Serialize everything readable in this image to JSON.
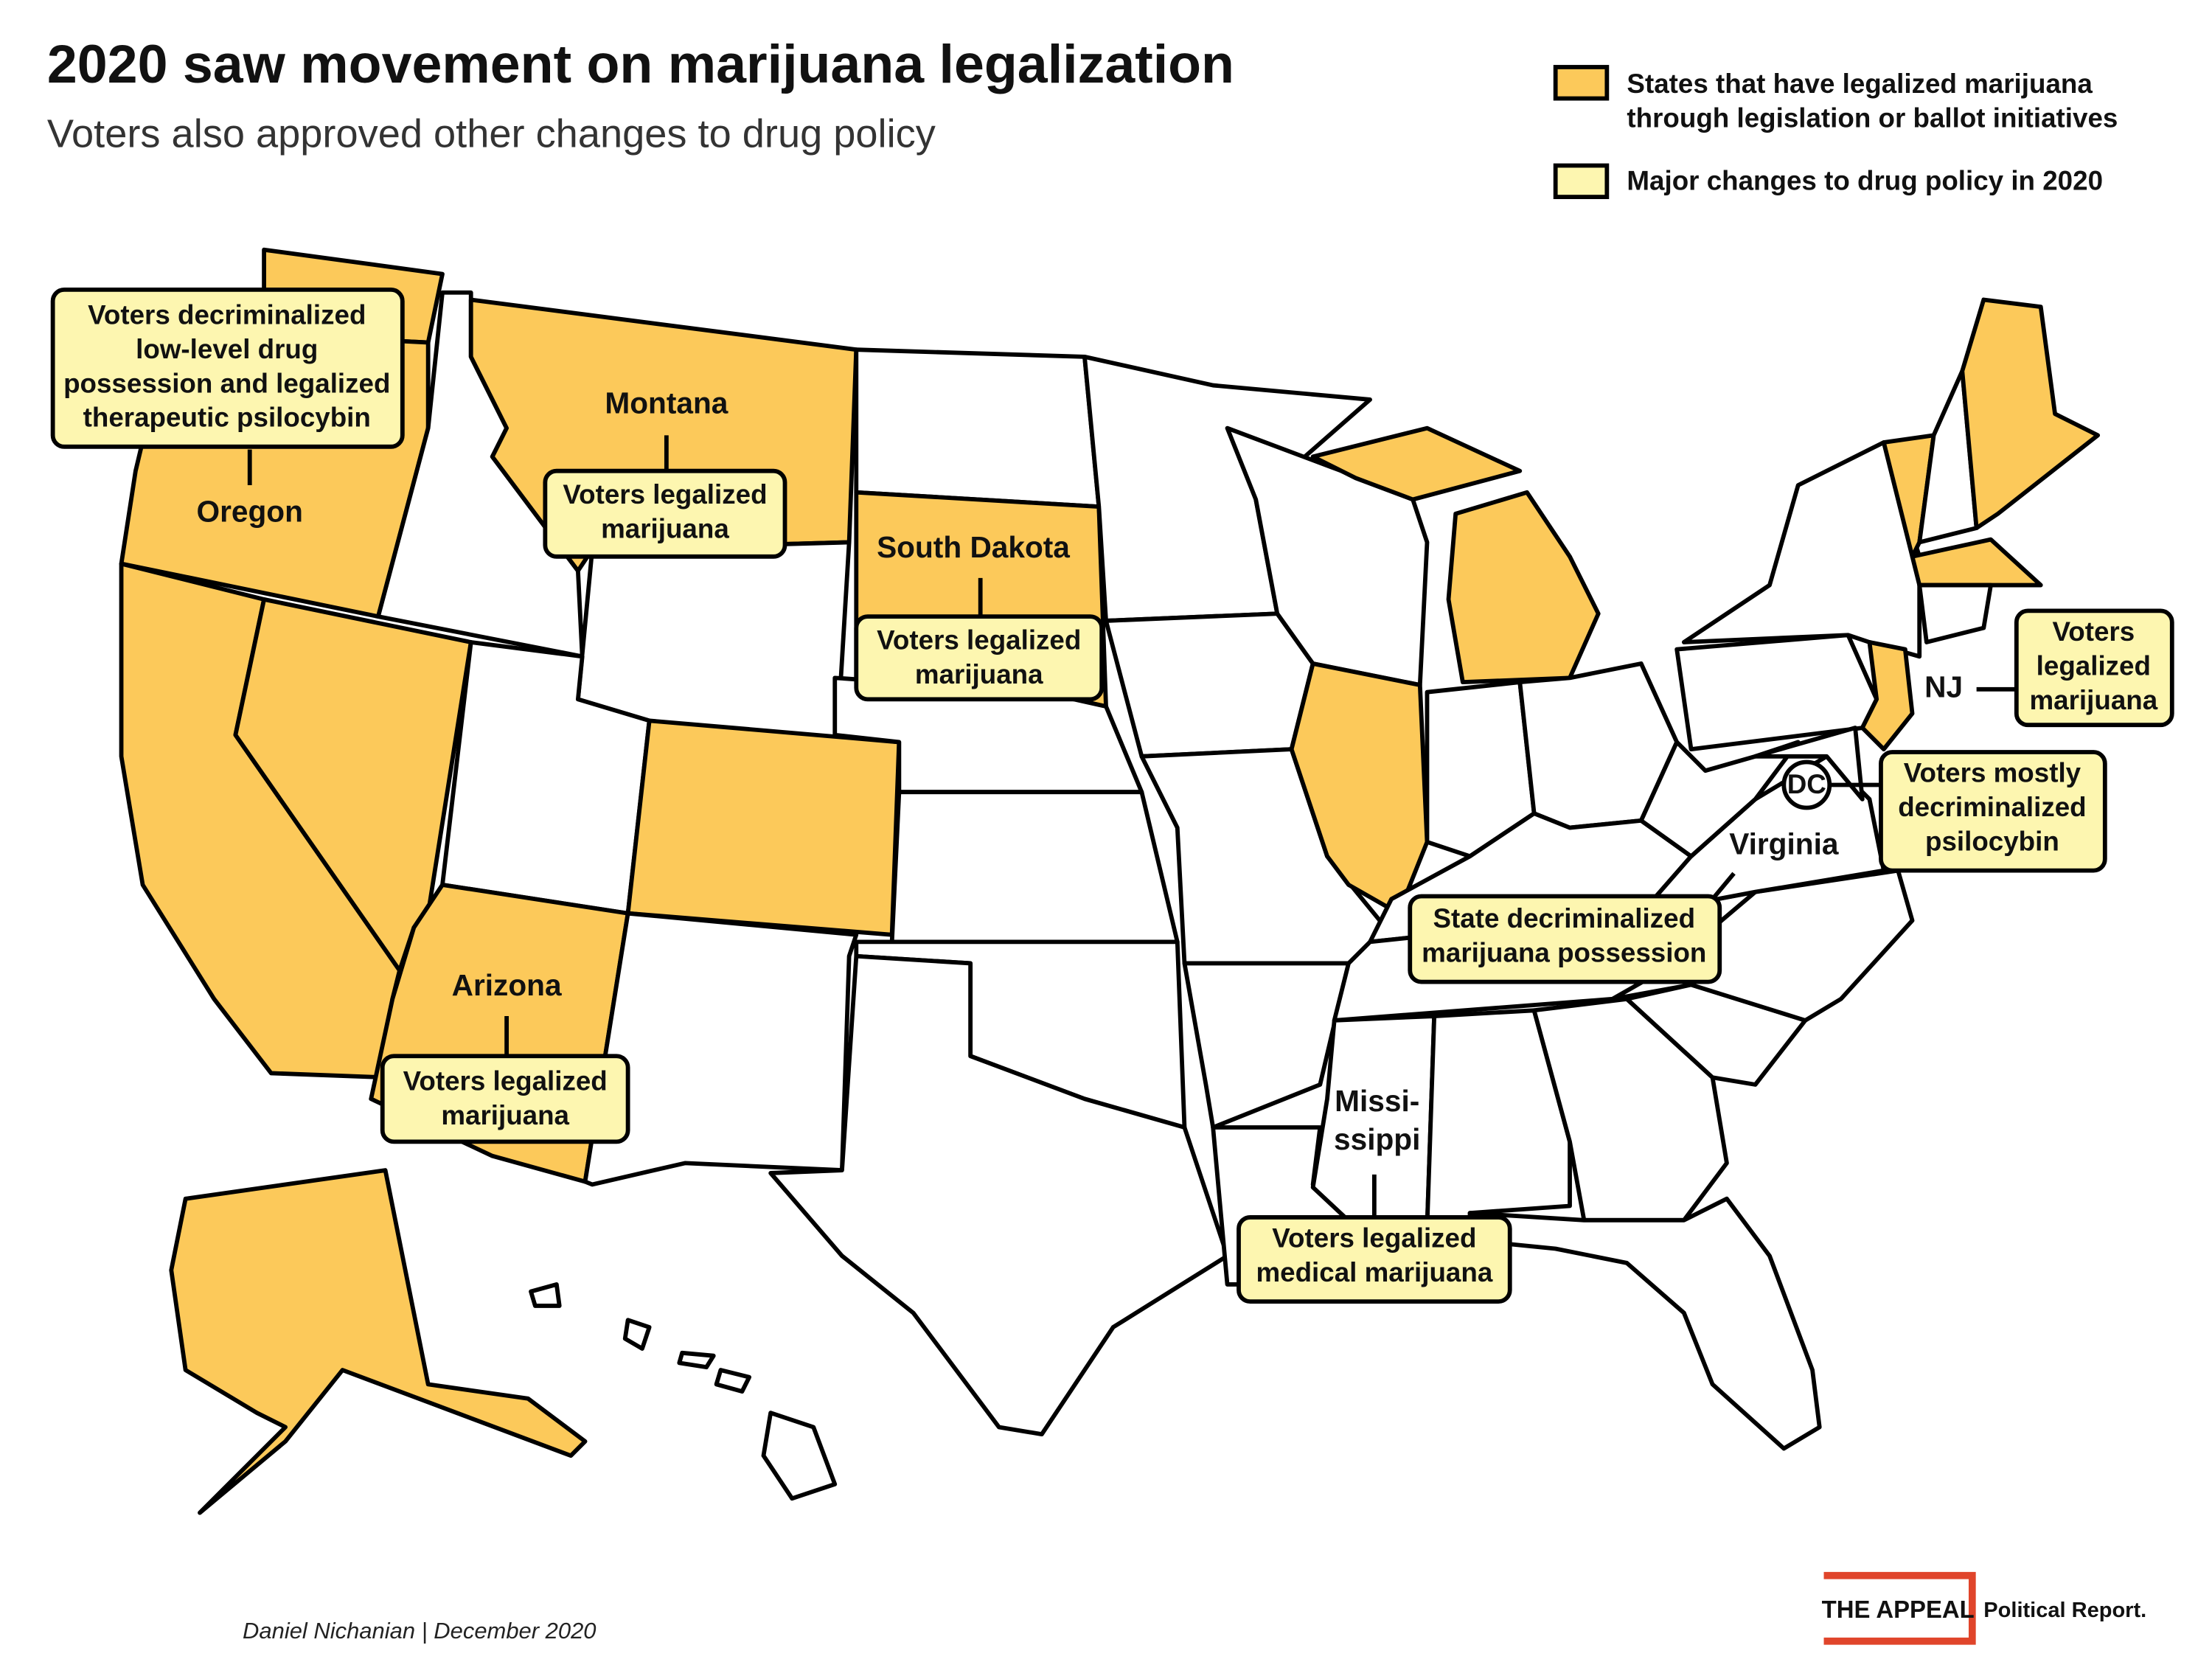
{
  "header": {
    "title": "2020 saw movement on marijuana legalization",
    "subtitle": "Voters also approved other changes to drug policy"
  },
  "legend": [
    {
      "label": [
        "States that have legalized marijuana",
        "through legislation or ballot initiatives"
      ],
      "color": "#fcc95a"
    },
    {
      "label": [
        "Major changes to drug policy in 2020"
      ],
      "color": "#fdf6b0"
    }
  ],
  "callouts": [
    {
      "state": [
        "Oregon"
      ],
      "text": [
        "Voters decriminalized",
        "low-level drug",
        "possession and legalized",
        "therapeutic psilocybin"
      ]
    },
    {
      "state": [
        "Montana"
      ],
      "text": [
        "Voters legalized",
        "marijuana"
      ]
    },
    {
      "state": [
        "South Dakota"
      ],
      "text": [
        "Voters legalized",
        "marijuana"
      ]
    },
    {
      "state": [
        "Arizona"
      ],
      "text": [
        "Voters legalized",
        "marijuana"
      ]
    },
    {
      "state": [
        "NJ"
      ],
      "text": [
        "Voters",
        "legalized",
        "marijuana"
      ]
    },
    {
      "state": [
        "DC"
      ],
      "text": [
        "Voters mostly",
        "decriminalized",
        "psilocybin"
      ]
    },
    {
      "state": [
        "Virginia"
      ],
      "text": [
        "State decriminalized",
        "marijuana possession"
      ]
    },
    {
      "state": [
        "Missi-",
        "ssippi"
      ],
      "text": [
        "Voters legalized",
        "medical marijuana"
      ]
    }
  ],
  "footer": {
    "byline": "Daniel Nichanian | December 2020",
    "logo": "THE APPEAL",
    "logo_sub": "Political Report."
  }
}
